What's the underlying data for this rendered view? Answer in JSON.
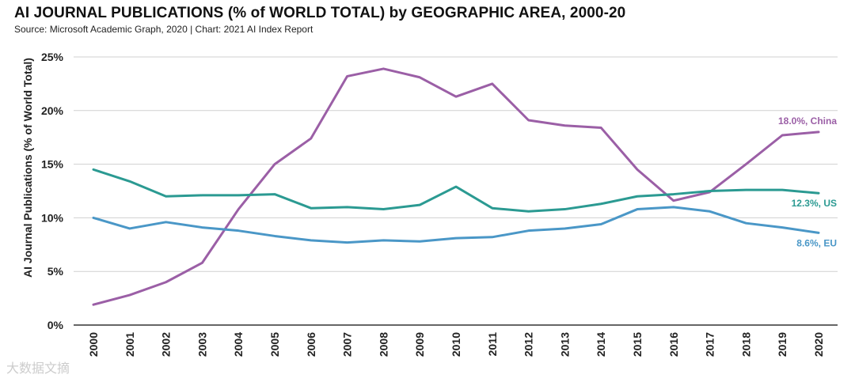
{
  "chart_data": {
    "type": "line",
    "title": "AI JOURNAL PUBLICATIONS (% of WORLD TOTAL) by GEOGRAPHIC AREA, 2000-20",
    "subtitle": "Source: Microsoft Academic Graph, 2020 | Chart: 2021 AI Index Report",
    "xlabel": "",
    "ylabel": "AI Journal Publications (% of World Total)",
    "ylim": [
      0,
      25
    ],
    "yticks": [
      0,
      5,
      10,
      15,
      20,
      25
    ],
    "ytick_labels": [
      "0%",
      "5%",
      "10%",
      "15%",
      "20%",
      "25%"
    ],
    "categories": [
      "2000",
      "2001",
      "2002",
      "2003",
      "2004",
      "2005",
      "2006",
      "2007",
      "2008",
      "2009",
      "2010",
      "2011",
      "2012",
      "2013",
      "2014",
      "2015",
      "2016",
      "2017",
      "2018",
      "2019",
      "2020"
    ],
    "grid": true,
    "series": [
      {
        "name": "China",
        "end_label": "18.0%, China",
        "color": "#9b5fa6",
        "values": [
          1.9,
          2.8,
          4.0,
          5.8,
          10.8,
          15.0,
          17.4,
          23.2,
          23.9,
          23.1,
          21.3,
          22.5,
          19.1,
          18.6,
          18.4,
          14.5,
          11.6,
          12.4,
          15.0,
          17.7,
          18.0
        ]
      },
      {
        "name": "US",
        "end_label": "12.3%, US",
        "color": "#2b9a92",
        "values": [
          14.5,
          13.4,
          12.0,
          12.1,
          12.1,
          12.2,
          10.9,
          11.0,
          10.8,
          11.2,
          12.9,
          10.9,
          10.6,
          10.8,
          11.3,
          12.0,
          12.2,
          12.5,
          12.6,
          12.6,
          12.3
        ]
      },
      {
        "name": "EU",
        "end_label": "8.6%, EU",
        "color": "#4a97c7",
        "values": [
          10.0,
          9.0,
          9.6,
          9.1,
          8.8,
          8.3,
          7.9,
          7.7,
          7.9,
          7.8,
          8.1,
          8.2,
          8.8,
          9.0,
          9.4,
          10.8,
          11.0,
          10.6,
          9.5,
          9.1,
          8.6
        ]
      }
    ]
  },
  "watermark": "大数据文摘"
}
